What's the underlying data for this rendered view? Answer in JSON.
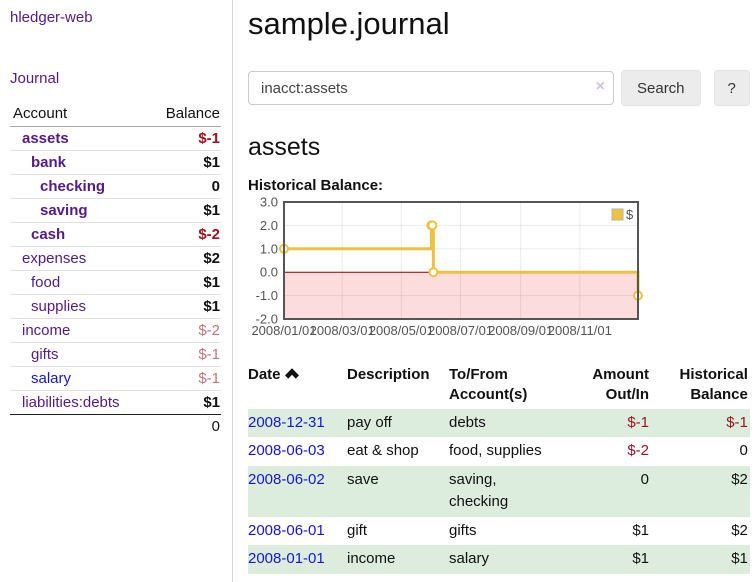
{
  "sidebar": {
    "brand": "hledger-web",
    "journal_link": "Journal",
    "accounts": {
      "col_account": "Account",
      "col_balance": "Balance",
      "rows": [
        {
          "name": "assets",
          "balance": "$-1"
        },
        {
          "name": "bank",
          "balance": "$1"
        },
        {
          "name": "checking",
          "balance": "0"
        },
        {
          "name": "saving",
          "balance": "$1"
        },
        {
          "name": "cash",
          "balance": "$-2"
        },
        {
          "name": "expenses",
          "balance": "$2"
        },
        {
          "name": "food",
          "balance": "$1"
        },
        {
          "name": "supplies",
          "balance": "$1"
        },
        {
          "name": "income",
          "balance": "$-2"
        },
        {
          "name": "gifts",
          "balance": "$-1"
        },
        {
          "name": "salary",
          "balance": "$-1"
        },
        {
          "name": "liabilities:debts",
          "balance": "$1"
        }
      ],
      "total": "0"
    }
  },
  "main": {
    "title": "sample.journal",
    "search": {
      "value": "inacct:assets",
      "clear_icon": "×",
      "search_button": "Search",
      "help_button": "?"
    },
    "account_heading": "assets",
    "chart_title": "Historical Balance:",
    "register": {
      "col_date": "Date",
      "col_description": "Description",
      "col_accounts": "To/From Account(s)",
      "col_amount": "Amount Out/In",
      "col_balance": "Historical Balance",
      "rows": [
        {
          "date": "2008-12-31",
          "description": "pay off",
          "accounts": "debts",
          "amount": "$-1",
          "balance": "$-1"
        },
        {
          "date": "2008-06-03",
          "description": "eat & shop",
          "accounts": "food, supplies",
          "amount": "$-2",
          "balance": "0"
        },
        {
          "date": "2008-06-02",
          "description": "save",
          "accounts": "saving, checking",
          "amount": "0",
          "balance": "$2"
        },
        {
          "date": "2008-06-01",
          "description": "gift",
          "accounts": "gifts",
          "amount": "$1",
          "balance": "$2"
        },
        {
          "date": "2008-01-01",
          "description": "income",
          "accounts": "salary",
          "amount": "$1",
          "balance": "$1"
        }
      ]
    }
  },
  "colors": {
    "link_purple": "#551a8b",
    "link_blue": "#1515e0",
    "negative_strong": "#a01220",
    "negative_soft": "#c4747d",
    "row_stripe_green": "#dcedde",
    "chart_line": "#edc240"
  },
  "chart_data": {
    "type": "line",
    "step": true,
    "title": "Historical Balance:",
    "series": [
      {
        "name": "$",
        "color": "#edc240",
        "points": [
          [
            "2008-01-01",
            1
          ],
          [
            "2008-06-01",
            2
          ],
          [
            "2008-06-02",
            2
          ],
          [
            "2008-06-03",
            0
          ],
          [
            "2008-12-31",
            -1
          ]
        ]
      }
    ],
    "x_ticks": [
      "2008/01/01",
      "2008/03/01",
      "2008/05/01",
      "2008/07/01",
      "2008/09/01",
      "2008/11/01"
    ],
    "y_ticks": [
      3.0,
      2.0,
      1.0,
      0.0,
      -1.0,
      -2.0
    ],
    "ylim": [
      -2,
      3
    ],
    "x_range": [
      "2008-01-01",
      "2008-12-31"
    ],
    "legend": {
      "label": "$",
      "position": "top-right"
    },
    "grid": true,
    "negative_region_color": "#fcdcdc",
    "zero_line_color": "#8b0000",
    "border_color": "#555555",
    "tick_label_color": "#545454"
  }
}
